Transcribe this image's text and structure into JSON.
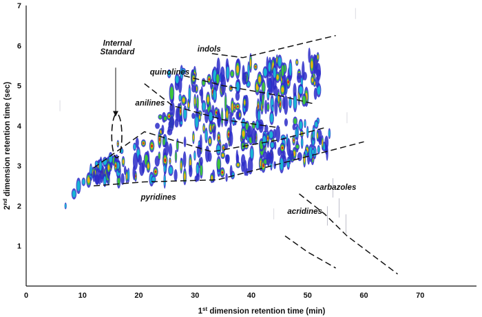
{
  "chart_data": {
    "type": "scatter",
    "title": "",
    "xlabel": {
      "prefix": "1",
      "sup": "st",
      "rest": " dimension retention time (min)"
    },
    "ylabel": {
      "prefix": "2",
      "sup": "nd",
      "rest": " dimension retention time (sec)"
    },
    "xlim": [
      0,
      80
    ],
    "ylim": [
      0,
      7
    ],
    "x_ticks": [
      0,
      10,
      20,
      30,
      40,
      50,
      60,
      70
    ],
    "y_ticks": [
      1,
      2,
      3,
      4,
      5,
      6,
      7
    ],
    "grid": false,
    "legend": "none",
    "region_labels": [
      {
        "text": "Internal",
        "x": 16.2,
        "y": 6.0
      },
      {
        "text": "Standard",
        "x": 16.2,
        "y": 5.78
      },
      {
        "text": "indols",
        "x": 32.5,
        "y": 5.85
      },
      {
        "text": "quinolines",
        "x": 25.5,
        "y": 5.28
      },
      {
        "text": "anilines",
        "x": 22.0,
        "y": 4.5
      },
      {
        "text": "pyridines",
        "x": 23.5,
        "y": 2.15
      },
      {
        "text": "carbazoles",
        "x": 55.0,
        "y": 2.4
      },
      {
        "text": "acridines",
        "x": 49.5,
        "y": 1.8
      }
    ],
    "boundaries": [
      {
        "name": "indols-upper",
        "points": [
          [
            33,
            5.8
          ],
          [
            38.5,
            5.7
          ],
          [
            46,
            5.95
          ],
          [
            55,
            6.25
          ]
        ]
      },
      {
        "name": "quinolines-lower",
        "points": [
          [
            28,
            5.25
          ],
          [
            35,
            5.0
          ],
          [
            45,
            4.75
          ],
          [
            51,
            4.55
          ]
        ]
      },
      {
        "name": "anilines-upper",
        "points": [
          [
            21,
            5.05
          ],
          [
            26,
            4.5
          ],
          [
            35,
            4.15
          ],
          [
            45,
            3.95
          ]
        ]
      },
      {
        "name": "pyridines-upper",
        "points": [
          [
            12,
            2.95
          ],
          [
            21,
            3.85
          ],
          [
            33,
            3.35
          ],
          [
            45,
            3.65
          ],
          [
            53,
            3.95
          ]
        ]
      },
      {
        "name": "pyridines-lower",
        "points": [
          [
            12,
            2.5
          ],
          [
            21,
            2.6
          ],
          [
            34,
            2.65
          ],
          [
            45,
            3.05
          ],
          [
            60,
            3.6
          ]
        ]
      },
      {
        "name": "carbazoles-boundary",
        "points": [
          [
            48.5,
            2.3
          ],
          [
            53,
            1.8
          ],
          [
            57,
            1.25
          ],
          [
            66,
            0.3
          ]
        ]
      },
      {
        "name": "acridines-boundary",
        "points": [
          [
            46,
            1.25
          ],
          [
            50,
            0.85
          ],
          [
            55,
            0.45
          ]
        ]
      }
    ],
    "internal_standard": {
      "arrow_from": [
        15.9,
        5.45
      ],
      "arrow_to": [
        15.9,
        4.3
      ],
      "ellipse_center": [
        16.1,
        3.75
      ],
      "ellipse_rx": 0.9,
      "ellipse_ry": 0.55
    },
    "colors": {
      "low": "#2b2bc8",
      "mid": "#19b4d4",
      "mid2": "#3cc43c",
      "high": "#f0b010",
      "peak": "#d02020"
    }
  }
}
